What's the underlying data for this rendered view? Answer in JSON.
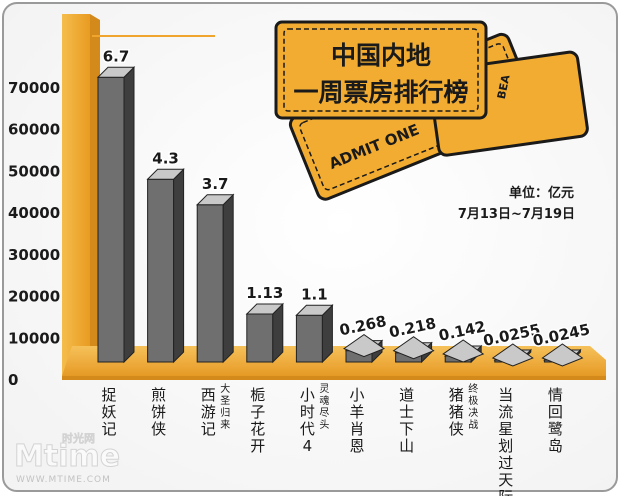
{
  "chart_data": {
    "type": "bar",
    "title": "中国内地一周票房排行榜",
    "title_lines": [
      "中国内地",
      "一周票房排行榜"
    ],
    "unit": "单位：亿元",
    "date_range": "7月13日~7月19日",
    "yticks": [
      "70000",
      "60000",
      "50000",
      "40000",
      "30000",
      "20000",
      "10000",
      "0"
    ],
    "ylim": [
      0,
      7
    ],
    "categories": [
      {
        "name": "捉妖记",
        "sub": ""
      },
      {
        "name": "煎饼侠",
        "sub": ""
      },
      {
        "name": "西游记",
        "sub": "大圣归来"
      },
      {
        "name": "栀子花开",
        "sub": ""
      },
      {
        "name": "小时代4",
        "sub": "灵魂尽头"
      },
      {
        "name": "小羊肖恩",
        "sub": ""
      },
      {
        "name": "道士下山",
        "sub": ""
      },
      {
        "name": "猪猪侠",
        "sub": "终极决战"
      },
      {
        "name": "当流星划过天际",
        "sub": ""
      },
      {
        "name": "情回鹭岛",
        "sub": ""
      }
    ],
    "values": [
      6.7,
      4.3,
      3.7,
      1.13,
      1.1,
      0.268,
      0.218,
      0.142,
      0.0255,
      0.0245
    ],
    "value_labels": [
      "6.7",
      "4.3",
      "3.7",
      "1.13",
      "1.1",
      "0.268",
      "0.218",
      "0.142",
      "0.0255",
      "0.0245"
    ],
    "grid": false,
    "legend": "none"
  },
  "ticket_text": [
    "ADMIT ONE",
    "BEA"
  ],
  "watermark": {
    "brand": "Mtime",
    "cn": "时光网",
    "url": "WWW.MTIME.COM"
  },
  "colors": {
    "gold": "#f2ac32",
    "gold_dark": "#d78c18",
    "bar_front": "#6f6f6f",
    "bar_side": "#3e3e3e",
    "bar_top": "#c9c9c9",
    "ink": "#1a1a1a"
  }
}
